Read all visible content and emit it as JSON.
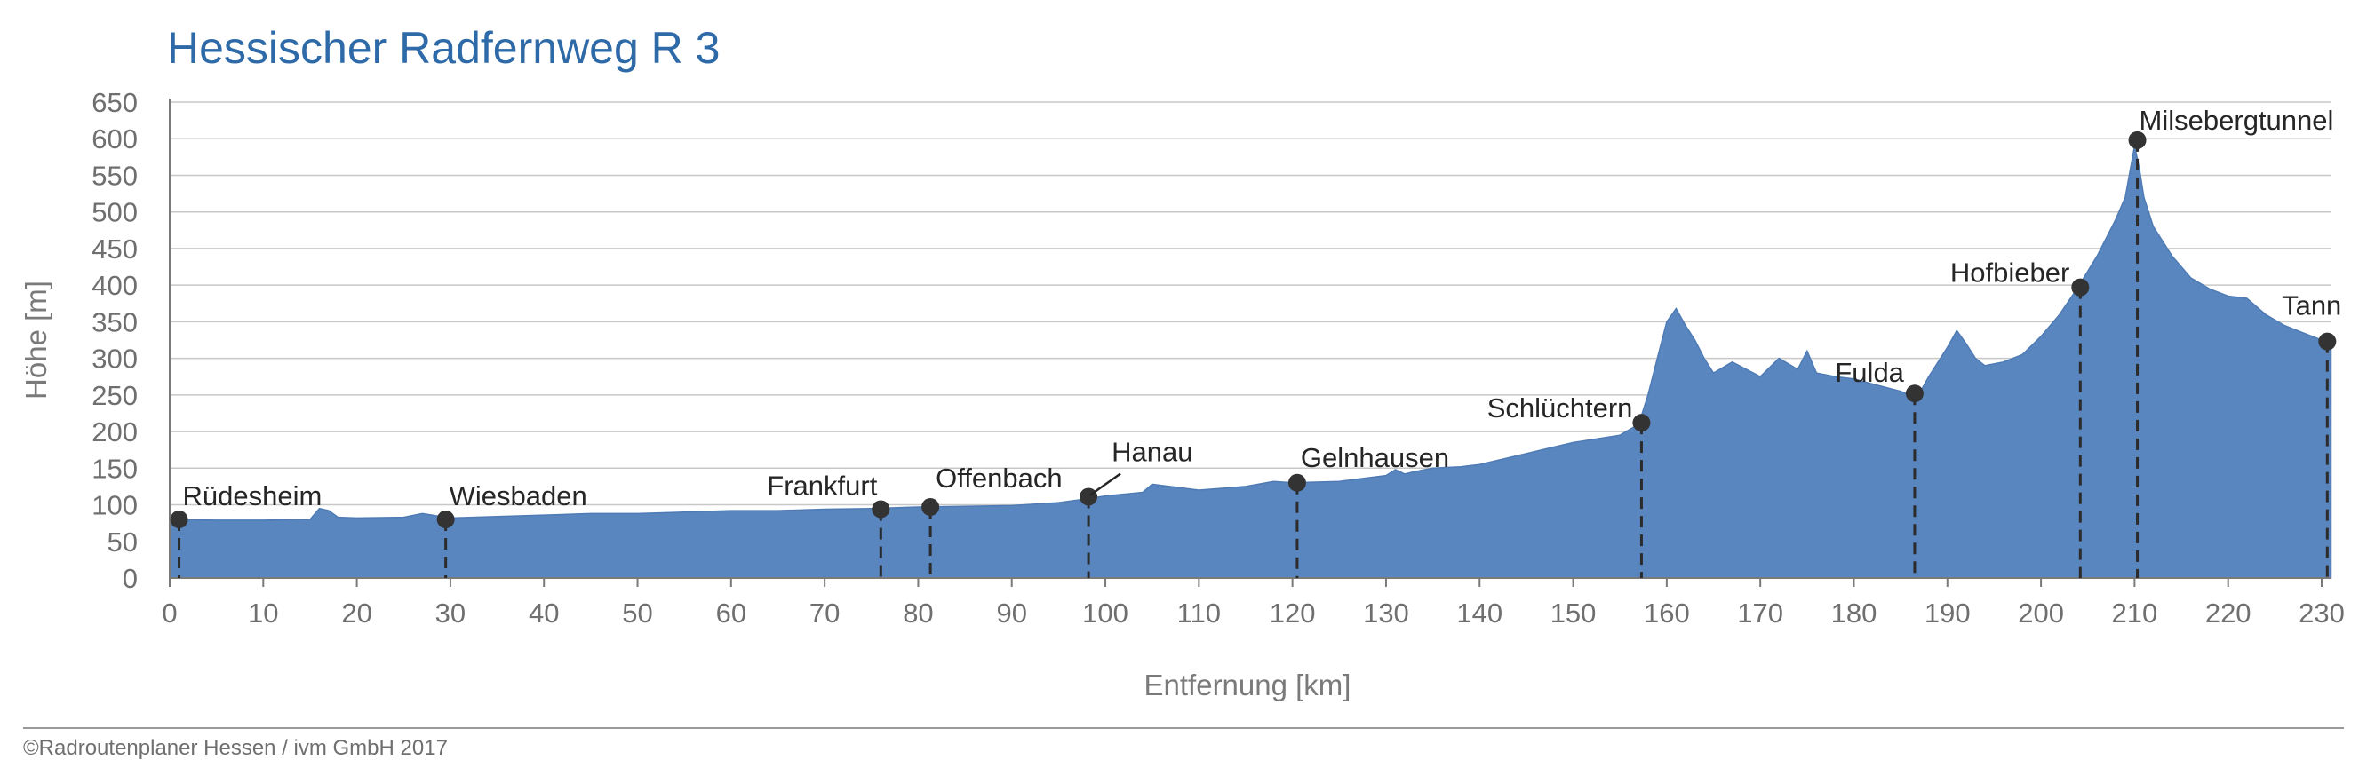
{
  "chart_data": {
    "type": "area",
    "title": "Hessischer Radfernweg R 3",
    "xlabel": "Entfernung [km]",
    "ylabel": "Höhe [m]",
    "xlim": [
      0,
      232
    ],
    "ylim": [
      0,
      650
    ],
    "x_ticks": [
      "0",
      "10",
      "20",
      "30",
      "40",
      "50",
      "60",
      "70",
      "80",
      "90",
      "100",
      "110",
      "120",
      "130",
      "140",
      "150",
      "160",
      "170",
      "180",
      "190",
      "200",
      "210",
      "220",
      "230"
    ],
    "y_ticks": [
      "0",
      "50",
      "100",
      "150",
      "200",
      "250",
      "300",
      "350",
      "400",
      "450",
      "500",
      "550",
      "600",
      "650"
    ],
    "grid": true,
    "fill_color": "#5a86bf",
    "title_color": "#2e6aa8",
    "profile": {
      "x": [
        0,
        5,
        10,
        15,
        16,
        17,
        18,
        20,
        25,
        27,
        30,
        35,
        40,
        45,
        50,
        55,
        60,
        65,
        70,
        75,
        80,
        85,
        90,
        95,
        98,
        100,
        104,
        105,
        110,
        115,
        118,
        120,
        125,
        130,
        131,
        132,
        133,
        135,
        138,
        140,
        145,
        150,
        155,
        157,
        158,
        159,
        160,
        161,
        162,
        163,
        164,
        165,
        167,
        170,
        172,
        174,
        175,
        176,
        178,
        180,
        182,
        185,
        186,
        187,
        188,
        190,
        191,
        192,
        193,
        194,
        196,
        198,
        200,
        202,
        204,
        206,
        208,
        209,
        210,
        210.5,
        211,
        212,
        214,
        216,
        218,
        220,
        222,
        224,
        226,
        228,
        230,
        231
      ],
      "y": [
        80,
        79,
        79,
        80,
        95,
        92,
        83,
        82,
        83,
        88,
        82,
        84,
        86,
        88,
        88,
        90,
        92,
        92,
        94,
        95,
        97,
        98,
        99,
        103,
        108,
        112,
        117,
        128,
        120,
        125,
        132,
        130,
        132,
        140,
        148,
        142,
        145,
        150,
        152,
        155,
        170,
        185,
        195,
        210,
        250,
        300,
        350,
        368,
        345,
        325,
        300,
        280,
        295,
        275,
        300,
        285,
        310,
        280,
        275,
        272,
        265,
        255,
        250,
        252,
        275,
        315,
        338,
        320,
        300,
        290,
        295,
        305,
        330,
        360,
        398,
        440,
        490,
        520,
        590,
        560,
        520,
        480,
        440,
        410,
        395,
        385,
        382,
        360,
        345,
        335,
        325,
        322
      ]
    },
    "stations": [
      {
        "name": "Rüdesheim",
        "km": 1,
        "elev": 80
      },
      {
        "name": "Wiesbaden",
        "km": 29.5,
        "elev": 80
      },
      {
        "name": "Frankfurt",
        "km": 76,
        "elev": 94
      },
      {
        "name": "Offenbach",
        "km": 81.3,
        "elev": 97
      },
      {
        "name": "Hanau",
        "km": 98.2,
        "elev": 111
      },
      {
        "name": "Gelnhausen",
        "km": 120.5,
        "elev": 130
      },
      {
        "name": "Schlüchtern",
        "km": 157.3,
        "elev": 212
      },
      {
        "name": "Fulda",
        "km": 186.5,
        "elev": 252
      },
      {
        "name": "Hofbieber",
        "km": 204.2,
        "elev": 397
      },
      {
        "name": "Milsebergtunnel",
        "km": 210.3,
        "elev": 598
      },
      {
        "name": "Tann",
        "km": 230.6,
        "elev": 323
      }
    ]
  },
  "footer": "©Radroutenplaner Hessen / ivm GmbH 2017"
}
